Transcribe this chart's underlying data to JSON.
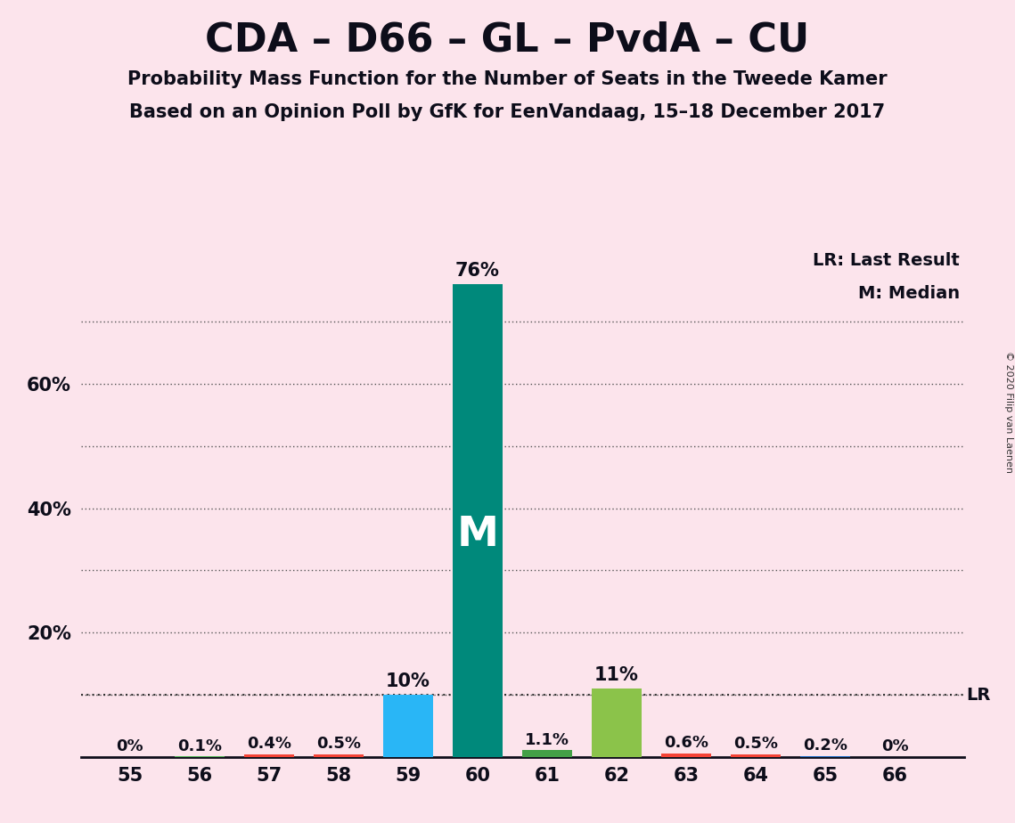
{
  "title": "CDA – D66 – GL – PvdA – CU",
  "subtitle1": "Probability Mass Function for the Number of Seats in the Tweede Kamer",
  "subtitle2": "Based on an Opinion Poll by GfK for EenVandaag, 15–18 December 2017",
  "copyright": "© 2020 Filip van Laenen",
  "legend_lr": "LR: Last Result",
  "legend_m": "M: Median",
  "seats": [
    55,
    56,
    57,
    58,
    59,
    60,
    61,
    62,
    63,
    64,
    65,
    66
  ],
  "values": [
    0.0,
    0.1,
    0.4,
    0.5,
    10.0,
    76.0,
    1.1,
    11.0,
    0.6,
    0.5,
    0.2,
    0.0
  ],
  "labels": [
    "0%",
    "0.1%",
    "0.4%",
    "0.5%",
    "10%",
    "76%",
    "1.1%",
    "11%",
    "0.6%",
    "0.5%",
    "0.2%",
    "0%"
  ],
  "bar_colors": [
    "#2196f3",
    "#4caf50",
    "#f44336",
    "#f44336",
    "#29b6f6",
    "#00897b",
    "#43a047",
    "#8bc34a",
    "#f44336",
    "#f44336",
    "#1565c0",
    "#1565c0"
  ],
  "median_seat": 60,
  "lr_value": 10.0,
  "background_color": "#fce4ec",
  "ylim": [
    0,
    82
  ],
  "ytick_positions": [
    20,
    40,
    60
  ],
  "ytick_labels": [
    "20%",
    "40%",
    "60%"
  ],
  "grid_lines": [
    10,
    20,
    30,
    40,
    50,
    60,
    70
  ],
  "dotted_grid_color": "#555555"
}
